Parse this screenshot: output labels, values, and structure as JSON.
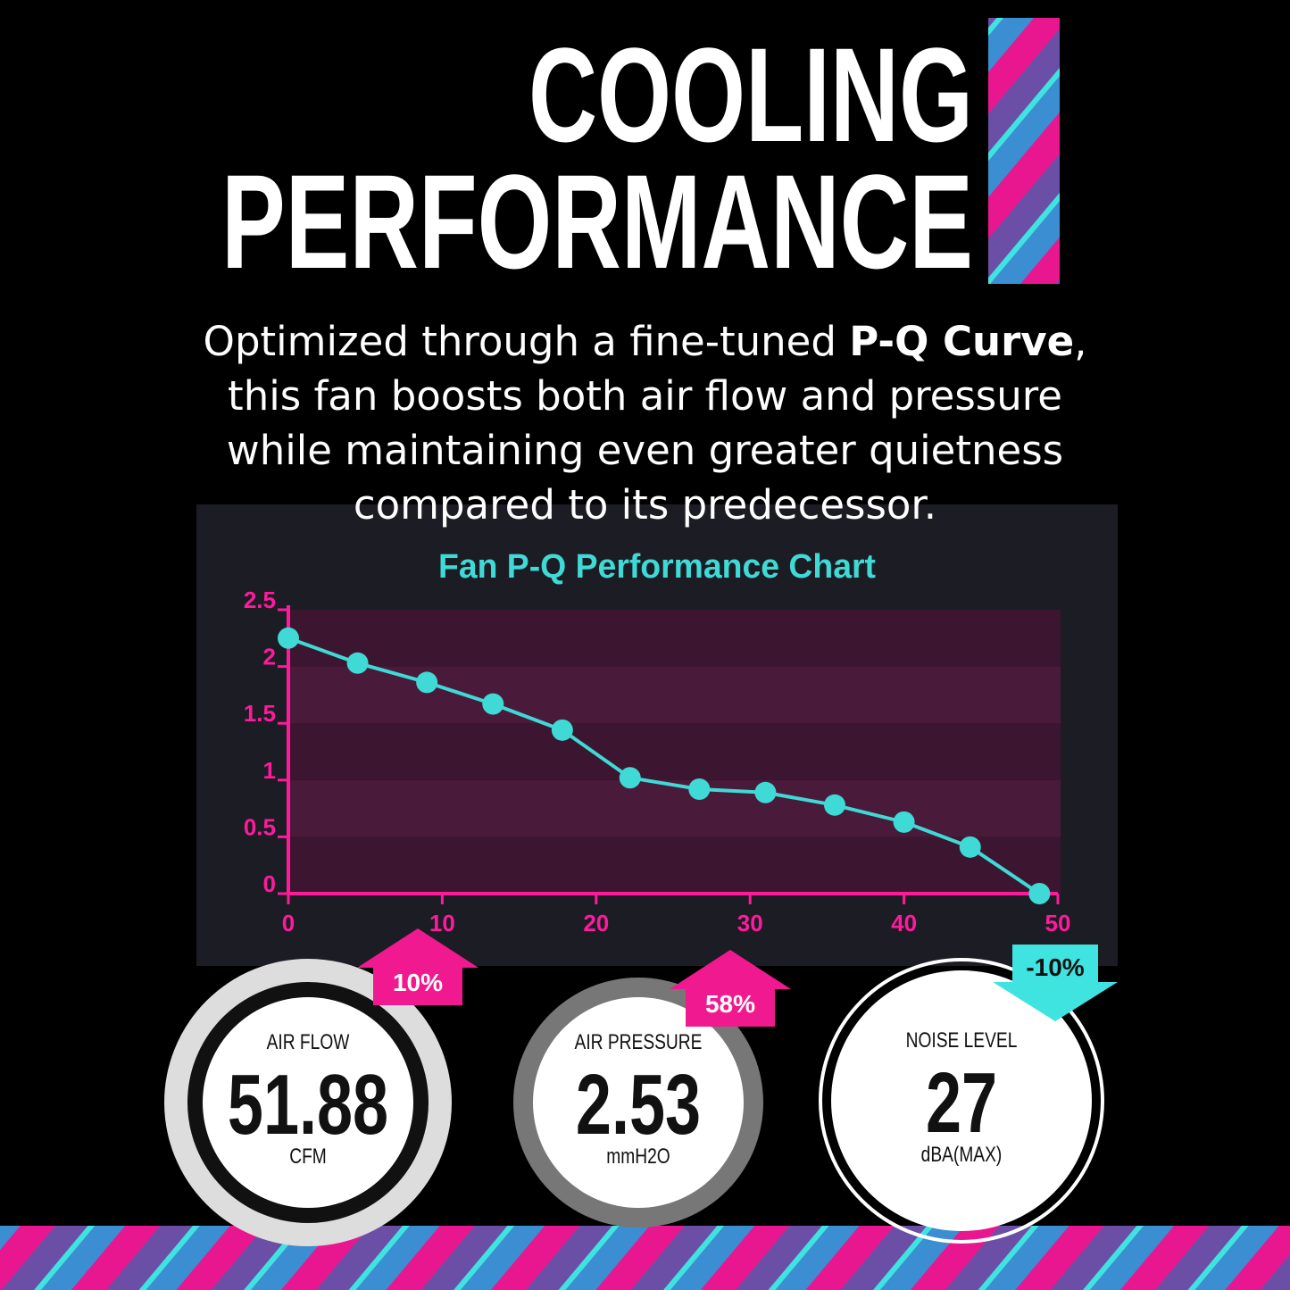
{
  "header": {
    "title_lines": [
      "COOLING",
      "PERFORMANCE"
    ]
  },
  "description": [
    {
      "text": "Optimized through a fine-tuned ",
      "bold": false
    },
    {
      "text": "P-Q Curve",
      "bold": true
    },
    {
      "text": ", this fan boosts both air flow and pressure while maintaining even greater quietness compared to its predecessor.",
      "bold": false
    }
  ],
  "chart_data": {
    "type": "line",
    "title": "Fan P-Q Performance Chart",
    "x": [
      0,
      4.5,
      9,
      13.3,
      17.8,
      22.2,
      26.7,
      31,
      35.5,
      40,
      44.3,
      48.8
    ],
    "series": [
      {
        "color": "#3fd9d6",
        "values": [
          2.25,
          2.03,
          1.86,
          1.67,
          1.44,
          1.02,
          0.92,
          0.89,
          0.78,
          0.63,
          0.41,
          0.0
        ]
      }
    ],
    "xlim": [
      0,
      50
    ],
    "xticks": [
      0,
      10,
      20,
      30,
      40,
      50
    ],
    "ylim": [
      0,
      2.5
    ],
    "yticks": [
      0,
      0.5,
      1,
      1.5,
      2,
      2.5
    ],
    "axis_color": "#ff1a9c"
  },
  "stats": [
    {
      "label": "AIR FLOW",
      "value": "51.88",
      "unit": "CFM",
      "change": "10%"
    },
    {
      "label": "AIR PRESSURE",
      "value": "2.53",
      "unit": "mmH2O",
      "change": "58%"
    },
    {
      "label": "NOISE LEVEL",
      "value": "27",
      "unit": "dBA(MAX)",
      "change": "-10%"
    }
  ]
}
